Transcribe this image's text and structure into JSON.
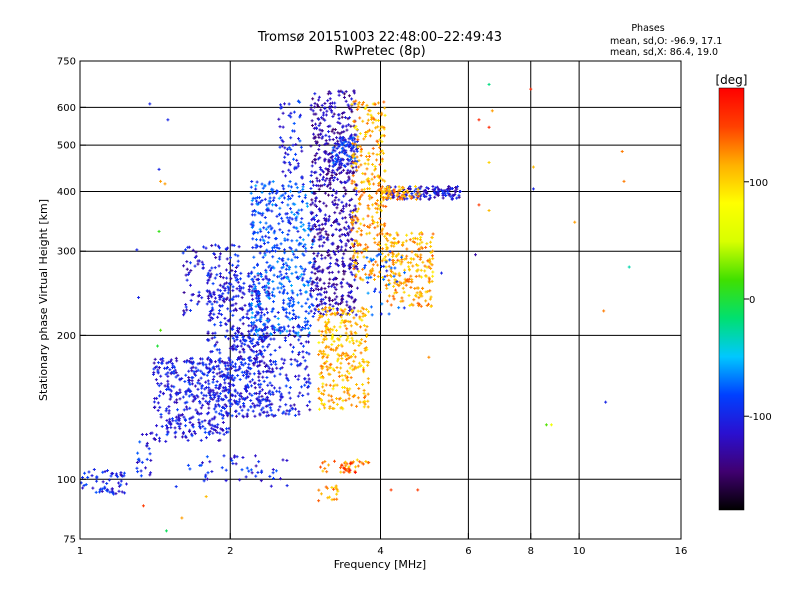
{
  "chart_data": {
    "type": "scatter",
    "title": "Tromsø 20151003 22:48:00–22:49:43",
    "subtitle": "RwPretec (8p)",
    "stats": {
      "heading": "Phases",
      "line_o": "mean, sd,O: -96.9, 17.1",
      "line_x": "mean, sd,X: 86.4, 19.0"
    },
    "xlabel": "Frequency [MHz]",
    "ylabel": "Stationary phase Virtual Height [km]",
    "x_scale": "log",
    "y_scale": "log",
    "xlim": [
      1,
      16
    ],
    "ylim": [
      75,
      750
    ],
    "xticks": [
      1,
      2,
      4,
      6,
      8,
      10,
      16
    ],
    "yticks": [
      75,
      100,
      200,
      300,
      400,
      500,
      600,
      750
    ],
    "grid": true,
    "colorbar": {
      "label": "[deg]",
      "range": [
        -180,
        180
      ],
      "ticks": [
        100,
        0,
        -100
      ],
      "colormap": [
        "#000000",
        "#400070",
        "#2a10d0",
        "#0040ff",
        "#00c8ff",
        "#00e070",
        "#40e000",
        "#d8ff00",
        "#ffff00",
        "#ffb000",
        "#ff4000",
        "#ff0000"
      ]
    },
    "clusters": [
      {
        "x_range": [
          1.0,
          1.25
        ],
        "y_range": [
          93,
          105
        ],
        "phase": -100,
        "count": 60
      },
      {
        "x_range": [
          1.3,
          1.4
        ],
        "y_range": [
          100,
          125
        ],
        "phase": -100,
        "count": 25
      },
      {
        "x_range": [
          1.4,
          2.0
        ],
        "y_range": [
          120,
          180
        ],
        "phase": -105,
        "count": 380
      },
      {
        "x_range": [
          1.8,
          2.4
        ],
        "y_range": [
          135,
          270
        ],
        "phase": -105,
        "count": 420
      },
      {
        "x_range": [
          1.6,
          2.1
        ],
        "y_range": [
          220,
          310
        ],
        "phase": -110,
        "count": 120
      },
      {
        "x_range": [
          2.0,
          2.9
        ],
        "y_range": [
          135,
          210
        ],
        "phase": -105,
        "count": 280
      },
      {
        "x_range": [
          2.2,
          2.95
        ],
        "y_range": [
          200,
          420
        ],
        "phase": -80,
        "count": 480
      },
      {
        "x_range": [
          2.5,
          2.8
        ],
        "y_range": [
          420,
          620
        ],
        "phase": -100,
        "count": 60
      },
      {
        "x_range": [
          2.9,
          3.6
        ],
        "y_range": [
          220,
          650
        ],
        "phase": -125,
        "count": 650
      },
      {
        "x_range": [
          3.2,
          3.6
        ],
        "y_range": [
          450,
          520
        ],
        "phase": -90,
        "count": 80
      },
      {
        "x_range": [
          3.0,
          3.8
        ],
        "y_range": [
          140,
          230
        ],
        "phase": 110,
        "count": 300
      },
      {
        "x_range": [
          3.5,
          4.1
        ],
        "y_range": [
          260,
          620
        ],
        "phase": 115,
        "count": 300
      },
      {
        "x_range": [
          4.1,
          5.1
        ],
        "y_range": [
          230,
          330
        ],
        "phase": 115,
        "count": 220
      },
      {
        "x_range": [
          3.7,
          4.5
        ],
        "y_range": [
          220,
          300
        ],
        "phase": -80,
        "count": 40
      },
      {
        "x_range": [
          4.1,
          5.8
        ],
        "y_range": [
          385,
          410
        ],
        "phase": -110,
        "count": 140
      },
      {
        "x_range": [
          4.0,
          4.8
        ],
        "y_range": [
          385,
          410
        ],
        "phase": 120,
        "count": 60
      },
      {
        "x_range": [
          3.0,
          3.8
        ],
        "y_range": [
          103,
          110
        ],
        "phase": 120,
        "count": 35
      },
      {
        "x_range": [
          3.2,
          3.7
        ],
        "y_range": [
          103,
          110
        ],
        "phase": 165,
        "count": 10
      },
      {
        "x_range": [
          3.0,
          3.3
        ],
        "y_range": [
          90,
          97
        ],
        "phase": 120,
        "count": 18
      },
      {
        "x_range": [
          1.55,
          2.6
        ],
        "y_range": [
          96,
          112
        ],
        "phase": -100,
        "count": 50
      }
    ],
    "points": [
      {
        "x": 1.38,
        "y": 610,
        "phase": -100
      },
      {
        "x": 1.5,
        "y": 565,
        "phase": -100
      },
      {
        "x": 1.44,
        "y": 445,
        "phase": -100
      },
      {
        "x": 1.44,
        "y": 330,
        "phase": 10
      },
      {
        "x": 1.3,
        "y": 302,
        "phase": -100
      },
      {
        "x": 1.31,
        "y": 240,
        "phase": -100
      },
      {
        "x": 1.45,
        "y": 420,
        "phase": 120
      },
      {
        "x": 1.48,
        "y": 415,
        "phase": 120
      },
      {
        "x": 1.45,
        "y": 205,
        "phase": 20
      },
      {
        "x": 1.43,
        "y": 190,
        "phase": 0
      },
      {
        "x": 1.34,
        "y": 88,
        "phase": 150
      },
      {
        "x": 1.6,
        "y": 83,
        "phase": 120
      },
      {
        "x": 1.49,
        "y": 78,
        "phase": -10
      },
      {
        "x": 1.79,
        "y": 92,
        "phase": 110
      },
      {
        "x": 2.6,
        "y": 97,
        "phase": -100
      },
      {
        "x": 4.2,
        "y": 95,
        "phase": 150
      },
      {
        "x": 4.75,
        "y": 95,
        "phase": 150
      },
      {
        "x": 5.0,
        "y": 180,
        "phase": 125
      },
      {
        "x": 5.3,
        "y": 270,
        "phase": -100
      },
      {
        "x": 6.6,
        "y": 670,
        "phase": -20
      },
      {
        "x": 6.7,
        "y": 590,
        "phase": 120
      },
      {
        "x": 6.3,
        "y": 565,
        "phase": 160
      },
      {
        "x": 6.6,
        "y": 545,
        "phase": 160
      },
      {
        "x": 6.6,
        "y": 460,
        "phase": 100
      },
      {
        "x": 6.3,
        "y": 375,
        "phase": 150
      },
      {
        "x": 6.6,
        "y": 365,
        "phase": 110
      },
      {
        "x": 6.2,
        "y": 295,
        "phase": -130
      },
      {
        "x": 8.0,
        "y": 655,
        "phase": 160
      },
      {
        "x": 8.1,
        "y": 450,
        "phase": 110
      },
      {
        "x": 8.1,
        "y": 405,
        "phase": -100
      },
      {
        "x": 8.8,
        "y": 130,
        "phase": 70
      },
      {
        "x": 8.6,
        "y": 130,
        "phase": 20
      },
      {
        "x": 9.8,
        "y": 345,
        "phase": 120
      },
      {
        "x": 11.2,
        "y": 225,
        "phase": 130
      },
      {
        "x": 11.3,
        "y": 145,
        "phase": -100
      },
      {
        "x": 12.2,
        "y": 485,
        "phase": 130
      },
      {
        "x": 12.3,
        "y": 420,
        "phase": 130
      },
      {
        "x": 12.6,
        "y": 278,
        "phase": -30
      }
    ]
  }
}
